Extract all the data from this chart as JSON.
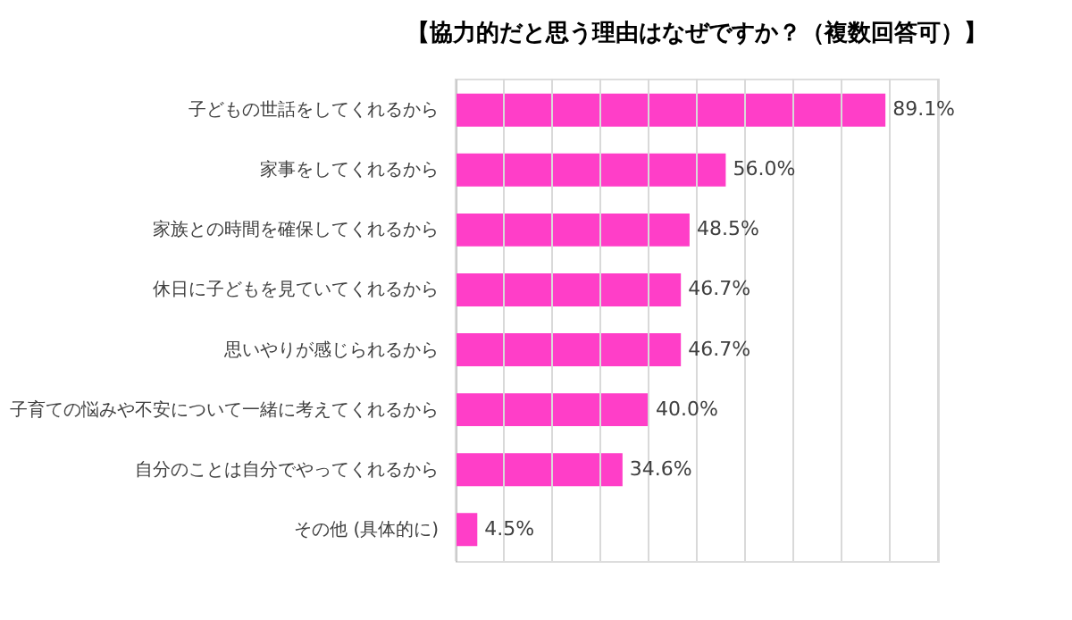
{
  "chart_data": {
    "type": "bar",
    "orientation": "horizontal",
    "title": "【協力的だと思う理由はなぜですか？（複数回答可）】",
    "categories": [
      "子どもの世話をしてくれるから",
      "家事をしてくれるから",
      "家族との時間を確保してくれるから",
      "休日に子どもを見ていてくれるから",
      "思いやりが感じられるから",
      "子育ての悩みや不安について一緒に考えてくれるから",
      "自分のことは自分でやってくれるから",
      "その他 (具体的に)"
    ],
    "values": [
      89.1,
      56.0,
      48.5,
      46.7,
      46.7,
      40.0,
      34.6,
      4.5
    ],
    "value_labels": [
      "89.1%",
      "56.0%",
      "48.5%",
      "46.7%",
      "46.7%",
      "40.0%",
      "34.6%",
      "4.5%"
    ],
    "color": "#ff3ec8",
    "xlim": [
      0,
      100
    ],
    "xticks": [
      {
        "value": 0,
        "label": null
      },
      {
        "value": 10,
        "label": null
      },
      {
        "value": 20,
        "label": null
      },
      {
        "value": 30,
        "label": null
      },
      {
        "value": 40,
        "label": null
      },
      {
        "value": 50,
        "label": null
      },
      {
        "value": 60,
        "label": null
      },
      {
        "value": 70,
        "label": null
      },
      {
        "value": 80,
        "label": null
      },
      {
        "value": 90,
        "label": null
      },
      {
        "value": 100,
        "label": null
      }
    ],
    "grid": "x",
    "tick_labels": "y"
  }
}
